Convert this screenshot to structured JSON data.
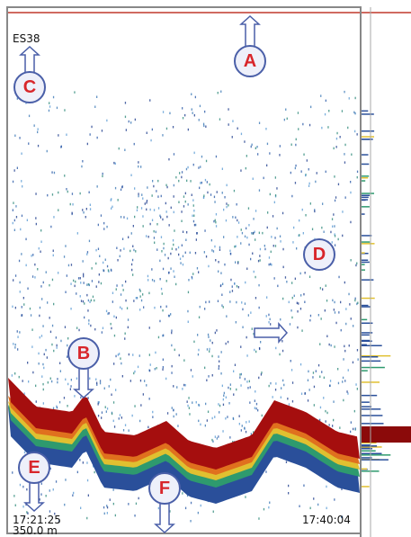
{
  "labels": {
    "instrument": "ES38",
    "time_start": "17:21:25",
    "depth": "350.0 m",
    "time_end": "17:40:04"
  },
  "callouts": [
    "A",
    "B",
    "C",
    "D",
    "E",
    "F"
  ]
}
